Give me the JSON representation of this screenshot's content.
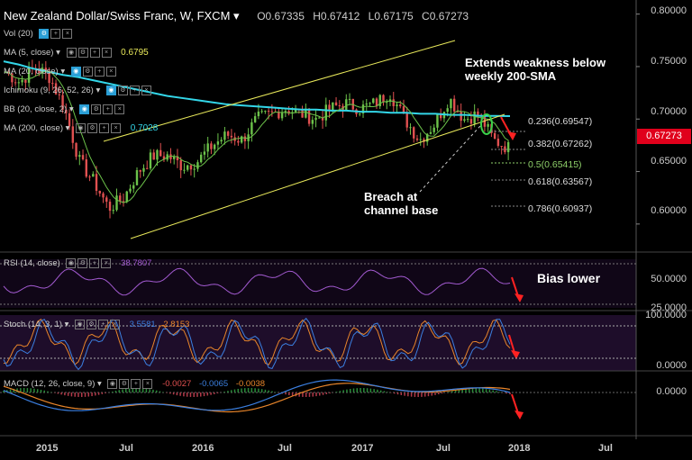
{
  "header": {
    "symbol": "New Zealand Dollar/Swiss Franc, W, FXCM",
    "open_label": "O0.67335",
    "high_label": "H0.67412",
    "low_label": "L0.67175",
    "close_label": "C0.67273"
  },
  "indicators": {
    "vol": {
      "label": "Vol (20)"
    },
    "ma5": {
      "label": "MA (5, close)",
      "value": "0.6795",
      "color": "#e8e85a"
    },
    "ma20": {
      "label": "MA (20, close)"
    },
    "ichimoku": {
      "label": "Ichimoku (9, 26, 52, 26)"
    },
    "bb": {
      "label": "BB (20, close, 2)"
    },
    "ma200": {
      "label": "MA (200, close)",
      "value": "0.7028",
      "color": "#33d6e8"
    }
  },
  "annotations": {
    "weakness_line1": "Extends weakness below",
    "weakness_line2": "weekly 200-SMA",
    "breach_line1": "Breach at",
    "breach_line2": "channel base",
    "bias": "Bias lower"
  },
  "fib_levels": [
    {
      "label": "0.236(0.69547)",
      "color": "#dddddd"
    },
    {
      "label": "0.382(0.67262)",
      "color": "#dddddd"
    },
    {
      "label": "0.5(0.65415)",
      "color": "#8fd16a"
    },
    {
      "label": "0.618(0.63567)",
      "color": "#dddddd"
    },
    {
      "label": "0.786(0.60937)",
      "color": "#dddddd"
    }
  ],
  "price_axis": [
    "0.80000",
    "0.75000",
    "0.70000",
    "0.65000",
    "0.60000"
  ],
  "current_price": "0.67273",
  "rsi": {
    "label": "RSI (14, close)",
    "value": "38.7807",
    "axis": [
      "50.0000",
      "25.0000"
    ]
  },
  "stoch": {
    "label": "Stoch (14, 3, 1)",
    "k_value": "3.5581",
    "d_value": "2.8153",
    "axis": [
      "100.0000",
      "0.0000"
    ]
  },
  "macd": {
    "label": "MACD (12, 26, close, 9)",
    "hist_value": "-0.0027",
    "macd_value": "-0.0065",
    "signal_value": "-0.0038",
    "axis": [
      "0.0000"
    ]
  },
  "x_axis": [
    "2015",
    "Jul",
    "2016",
    "Jul",
    "2017",
    "Jul",
    "2018",
    "Jul"
  ],
  "colors": {
    "up": "#6cc24a",
    "down": "#e05050",
    "ma200": "#33d6e8",
    "ma20": "#6cc24a",
    "channel": "#e8e85a",
    "rsi": "#a25ad0",
    "stoch_k": "#3b7fe0",
    "stoch_d": "#e8852a",
    "macd": "#3b7fe0",
    "signal": "#e8852a",
    "arrow": "#ff2222"
  },
  "chart_data": {
    "type": "candlestick",
    "title": "New Zealand Dollar/Swiss Franc, W, FXCM",
    "x": [
      "2015-01",
      "2015-02",
      "2015-03",
      "2015-04",
      "2015-05",
      "2015-06",
      "2015-07",
      "2015-08",
      "2015-09",
      "2015-10",
      "2015-11",
      "2015-12",
      "2016-01",
      "2016-02",
      "2016-03",
      "2016-04",
      "2016-05",
      "2016-06",
      "2016-07",
      "2016-08",
      "2016-09",
      "2016-10",
      "2016-11",
      "2016-12",
      "2017-01",
      "2017-02",
      "2017-03",
      "2017-04",
      "2017-05",
      "2017-06",
      "2017-07",
      "2017-08",
      "2017-09",
      "2017-10",
      "2017-11"
    ],
    "close": [
      0.745,
      0.735,
      0.75,
      0.74,
      0.71,
      0.66,
      0.64,
      0.615,
      0.625,
      0.65,
      0.665,
      0.665,
      0.655,
      0.66,
      0.675,
      0.685,
      0.68,
      0.7,
      0.705,
      0.71,
      0.705,
      0.7,
      0.71,
      0.715,
      0.71,
      0.715,
      0.725,
      0.7,
      0.68,
      0.695,
      0.72,
      0.7,
      0.705,
      0.68,
      0.6727
    ],
    "ma200": [
      0.755,
      0.752,
      0.748,
      0.745,
      0.742,
      0.74,
      0.737,
      0.734,
      0.731,
      0.728,
      0.725,
      0.722,
      0.72,
      0.718,
      0.716,
      0.714,
      0.713,
      0.712,
      0.711,
      0.71,
      0.709,
      0.709,
      0.708,
      0.708,
      0.707,
      0.707,
      0.706,
      0.706,
      0.705,
      0.705,
      0.704,
      0.704,
      0.703,
      0.703,
      0.7028
    ],
    "ylim": [
      0.575,
      0.81
    ],
    "fibonacci": [
      0.69547,
      0.67262,
      0.65415,
      0.63567,
      0.60937
    ],
    "rsi_last": 38.7807,
    "stoch_k_last": 3.5581,
    "stoch_d_last": 2.8153,
    "macd_last": -0.0065,
    "signal_last": -0.0038,
    "hist_last": -0.0027
  }
}
